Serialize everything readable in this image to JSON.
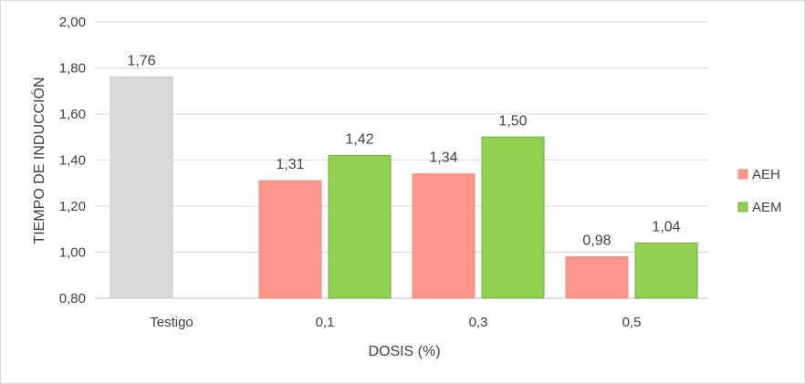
{
  "chart_data": {
    "type": "bar",
    "title": "",
    "xlabel": "DOSIS (%)",
    "ylabel": "TIEMPO DE INDUCCIÓN",
    "ylim": [
      0.8,
      2.0
    ],
    "yticks": [
      "0,80",
      "1,00",
      "1,20",
      "1,40",
      "1,60",
      "1,80",
      "2,00"
    ],
    "categories": [
      "Testigo",
      "0,1",
      "0,3",
      "0,5"
    ],
    "grid": true,
    "legend_position": "right",
    "series": [
      {
        "name": "Testigo",
        "in_legend": false,
        "color": "#d9d9d9",
        "border": "#c6c6c6",
        "values": [
          1.76,
          null,
          null,
          null
        ],
        "labels": [
          "1,76",
          null,
          null,
          null
        ]
      },
      {
        "name": "AEH",
        "in_legend": true,
        "color": "#ff968b",
        "border": "#f08a80",
        "values": [
          null,
          1.31,
          1.34,
          0.98
        ],
        "labels": [
          null,
          "1,31",
          "1,34",
          "0,98"
        ]
      },
      {
        "name": "AEM",
        "in_legend": true,
        "color": "#92d050",
        "border": "#70ad47",
        "values": [
          null,
          1.42,
          1.5,
          1.04
        ],
        "labels": [
          null,
          "1,42",
          "1,50",
          "1,04"
        ]
      }
    ]
  }
}
